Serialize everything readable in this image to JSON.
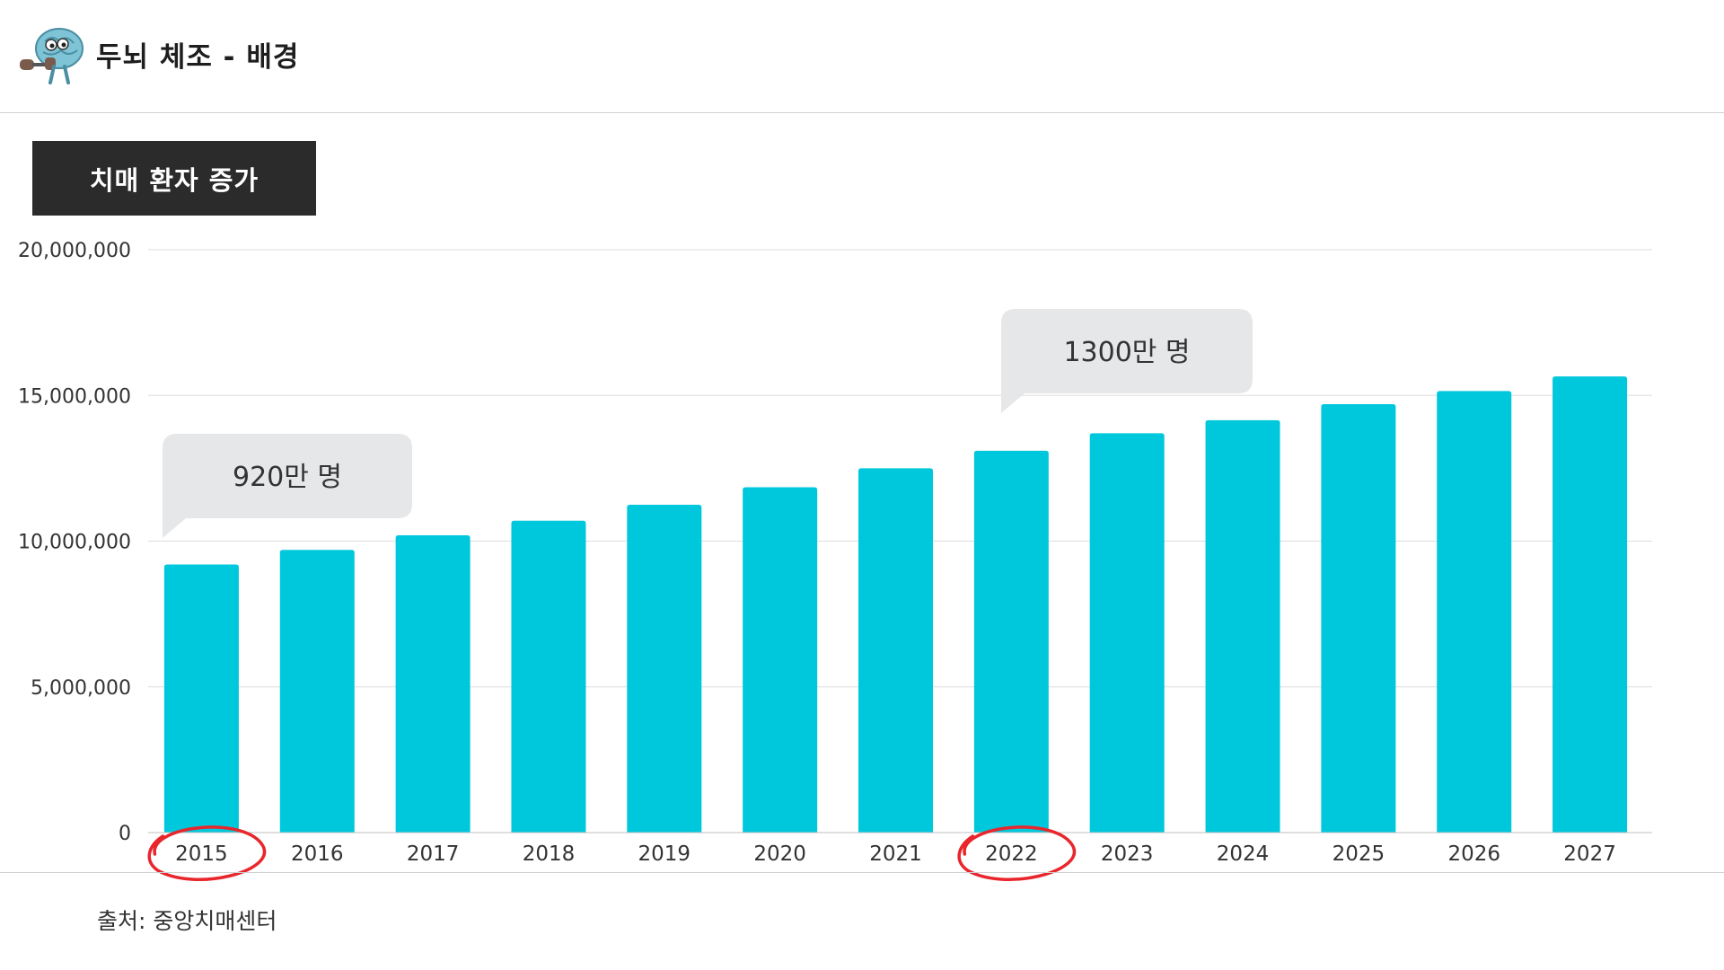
{
  "header": {
    "title": "두뇌 체조 - 배경",
    "logo_icon": "brain-mascot-icon"
  },
  "section": {
    "label": "치매 환자 증가"
  },
  "chart_data": {
    "type": "bar",
    "title": "",
    "xlabel": "",
    "ylabel": "",
    "categories": [
      "2015",
      "2016",
      "2017",
      "2018",
      "2019",
      "2020",
      "2021",
      "2022",
      "2023",
      "2024",
      "2025",
      "2026",
      "2027"
    ],
    "values": [
      9200000,
      9700000,
      10200000,
      10700000,
      11250000,
      11850000,
      12500000,
      13100000,
      13700000,
      14150000,
      14700000,
      15150000,
      15650000
    ],
    "ylim": [
      0,
      20000000
    ],
    "yticks": [
      0,
      5000000,
      10000000,
      15000000,
      20000000
    ],
    "ytick_labels": [
      "0",
      "5,000,000",
      "10,000,000",
      "15,000,000",
      "20,000,000"
    ],
    "grid": true,
    "bar_color": "#00c8dc",
    "callouts": [
      {
        "category": "2015",
        "text": "920만 명"
      },
      {
        "category": "2022",
        "text": "1300만 명"
      }
    ],
    "circled_categories": [
      "2015",
      "2022"
    ],
    "circle_color": "#e8262c"
  },
  "footer": {
    "source": "출처: 중앙치매센터"
  }
}
